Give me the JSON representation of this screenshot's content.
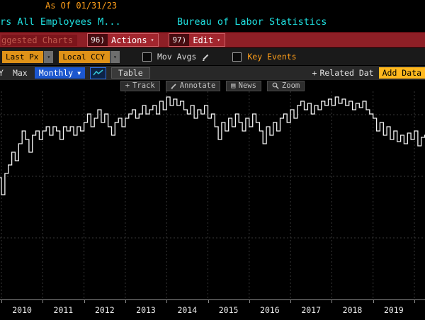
{
  "header": {
    "as_of": "As Of 01/31/23",
    "title_left": "rs All Employees M...",
    "title_right": "Bureau of Labor Statistics"
  },
  "menu_bar": {
    "suggested_charts": "ggested Charts",
    "actions_key": "96)",
    "actions_label": "Actions",
    "edit_key": "97)",
    "edit_label": "Edit"
  },
  "toolbar": {
    "last_px": "Last Px",
    "local_ccy": "Local CCY",
    "mov_avgs": "Mov Avgs",
    "key_events": "Key Events",
    "period_partial": "Y",
    "period_max": "Max",
    "frequency": "Monthly",
    "table": "Table",
    "related_data": "Related Dat",
    "add_data": "Add Data"
  },
  "chart_tools": {
    "track": "Track",
    "annotate": "Annotate",
    "news": "News",
    "zoom": "Zoom"
  },
  "icons": {
    "caret_small": "▾",
    "caret": "▼",
    "plus": "+",
    "news": "▤"
  },
  "colors": {
    "background": "#000000",
    "amber_text": "#ff9f1a",
    "amber_box": "#df9218",
    "add_data_amber": "#ffb81e",
    "cyan_text": "#1fe0e0",
    "menu_bar_red": "#8e1f26",
    "frequency_blue": "#1c57cf",
    "line_white": "#f5f5f5",
    "grid_gray": "#383838"
  },
  "chart_data": {
    "type": "line",
    "style": "step",
    "title": "",
    "xlabel": "",
    "ylabel": "",
    "frequency": "monthly",
    "x_start": "2009-12",
    "x_end": "2020-04",
    "x_tick_labels": [
      "2010",
      "2011",
      "2012",
      "2013",
      "2014",
      "2015",
      "2016",
      "2017",
      "2018",
      "2019"
    ],
    "y_axis_labels_visible": false,
    "grid": "dashed",
    "legend": "none",
    "line_color": "#f5f5f5",
    "value_range": [
      40.0,
      42.3
    ],
    "values": [
      40.4,
      40.0,
      40.5,
      40.7,
      41.0,
      40.8,
      41.2,
      41.5,
      41.3,
      41.0,
      41.4,
      41.5,
      41.3,
      41.5,
      41.6,
      41.4,
      41.6,
      41.5,
      41.3,
      41.6,
      41.5,
      41.6,
      41.4,
      41.6,
      41.5,
      41.7,
      41.9,
      41.6,
      41.8,
      42.0,
      41.7,
      41.9,
      41.6,
      41.4,
      41.7,
      41.8,
      41.6,
      41.8,
      41.9,
      42.0,
      41.8,
      41.9,
      42.1,
      41.9,
      42.0,
      42.1,
      41.9,
      42.2,
      42.0,
      42.3,
      42.1,
      42.25,
      42.1,
      42.2,
      42.0,
      41.9,
      42.1,
      41.8,
      42.0,
      41.9,
      42.1,
      41.8,
      41.9,
      41.6,
      41.3,
      41.7,
      41.5,
      41.8,
      41.6,
      41.9,
      41.7,
      41.5,
      41.8,
      41.6,
      41.9,
      41.7,
      41.5,
      41.2,
      41.6,
      41.4,
      41.7,
      41.5,
      41.8,
      41.9,
      41.7,
      42.0,
      41.8,
      42.1,
      42.2,
      42.0,
      42.15,
      41.9,
      42.1,
      42.0,
      42.2,
      42.1,
      42.25,
      42.1,
      42.3,
      42.15,
      42.25,
      42.1,
      42.2,
      42.0,
      42.15,
      42.05,
      42.2,
      42.0,
      41.9,
      41.8,
      41.5,
      41.7,
      41.4,
      41.6,
      41.3,
      41.5,
      41.25,
      41.4,
      41.2,
      41.45,
      41.3,
      41.5,
      41.15,
      41.35,
      41.4
    ]
  }
}
